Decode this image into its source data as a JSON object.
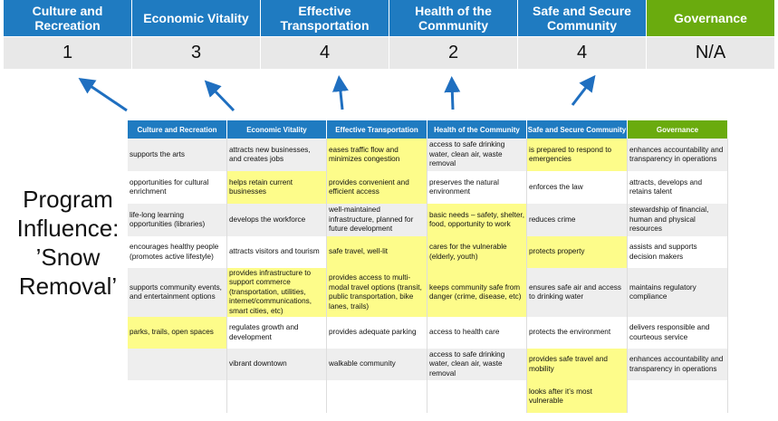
{
  "header": {
    "columns": [
      {
        "label": "Culture and Recreation",
        "score": "1"
      },
      {
        "label": "Economic Vitality",
        "score": "3"
      },
      {
        "label": "Effective Transportation",
        "score": "4"
      },
      {
        "label": "Health of the Community",
        "score": "2"
      },
      {
        "label": "Safe and Secure Community",
        "score": "4"
      },
      {
        "label": "Governance",
        "score": "N/A"
      }
    ]
  },
  "colors": {
    "blue": "#1f7bc1",
    "green": "#6aab0e",
    "highlight": "#fdfc8a",
    "arrow": "#1f6fc0"
  },
  "title": "Program Influence: ’Snow Removal’",
  "table": {
    "headers": [
      "Culture and Recreation",
      "Economic Vitality",
      "Effective Transportation",
      "Health of the Community",
      "Safe and Secure Community",
      "Governance"
    ],
    "rows": [
      [
        {
          "t": "supports the arts"
        },
        {
          "t": "attracts new businesses, and creates jobs"
        },
        {
          "t": "eases traffic flow and minimizes congestion",
          "h": true
        },
        {
          "t": "access to safe drinking water, clean air, waste removal"
        },
        {
          "t": "is prepared to respond to emergencies",
          "h": true
        },
        {
          "t": "enhances accountability and transparency in operations"
        }
      ],
      [
        {
          "t": "opportunities for cultural enrichment"
        },
        {
          "t": "helps retain current businesses",
          "h": true
        },
        {
          "t": "provides convenient and efficient access",
          "h": true
        },
        {
          "t": "preserves the natural environment"
        },
        {
          "t": "enforces the law"
        },
        {
          "t": "attracts, develops and retains talent"
        }
      ],
      [
        {
          "t": "life-long learning opportunities (libraries)"
        },
        {
          "t": "develops the workforce"
        },
        {
          "t": "well-maintained infrastructure, planned for future development"
        },
        {
          "t": "basic needs – safety, shelter, food, opportunity to work",
          "h": true
        },
        {
          "t": "reduces crime"
        },
        {
          "t": "stewardship of financial, human and physical resources"
        }
      ],
      [
        {
          "t": "encourages healthy people (promotes active lifestyle)"
        },
        {
          "t": "attracts visitors and tourism"
        },
        {
          "t": "safe travel, well-lit",
          "h": true
        },
        {
          "t": "cares for the vulnerable (elderly, youth)",
          "h": true
        },
        {
          "t": "protects property",
          "h": true
        },
        {
          "t": "assists and supports decision makers"
        }
      ],
      [
        {
          "t": "supports community events, and entertainment options"
        },
        {
          "t": "provides infrastructure to support commerce (transportation, utilities, internet/communications, smart cities, etc)",
          "h": true
        },
        {
          "t": "provides access to multi-modal travel options (transit, public transportation, bike lanes, trails)",
          "h": true
        },
        {
          "t": "keeps community safe from danger (crime, disease, etc)",
          "h": true
        },
        {
          "t": "ensures safe air and access to drinking water"
        },
        {
          "t": "maintains regulatory compliance"
        }
      ],
      [
        {
          "t": "parks, trails, open spaces",
          "h": true
        },
        {
          "t": "regulates growth and development"
        },
        {
          "t": "provides adequate parking"
        },
        {
          "t": "access to health care"
        },
        {
          "t": "protects the environment"
        },
        {
          "t": "delivers responsible and courteous service"
        }
      ],
      [
        {
          "t": ""
        },
        {
          "t": "vibrant downtown"
        },
        {
          "t": "walkable community"
        },
        {
          "t": "access to safe drinking water, clean air, waste removal"
        },
        {
          "t": "provides safe travel and mobility",
          "h": true
        },
        {
          "t": "enhances accountability and transparency in operations"
        }
      ],
      [
        {
          "t": ""
        },
        {
          "t": ""
        },
        {
          "t": ""
        },
        {
          "t": ""
        },
        {
          "t": "looks after it’s most vulnerable",
          "h": true
        },
        {
          "t": ""
        }
      ]
    ]
  }
}
